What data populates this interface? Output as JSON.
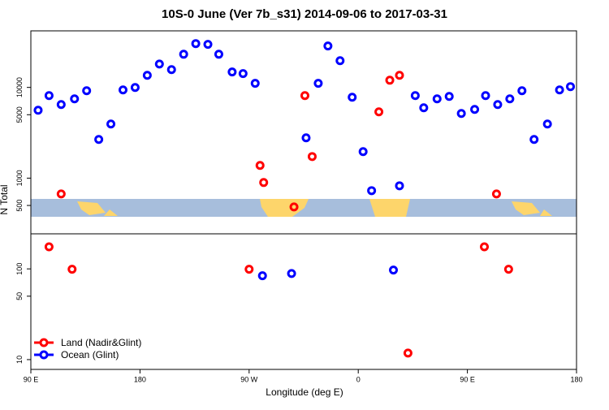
{
  "chart_data": {
    "type": "scatter",
    "title": "10S-0 June (Ver 7b_s31)   2014-09-06 to 2017-03-31",
    "x_label": "Longitude (deg E)",
    "y_label": "N Total",
    "xlim": [
      90,
      540
    ],
    "xticks": [
      {
        "value": 90,
        "label": "90 E"
      },
      180,
      {
        "value": 270,
        "label": "90 W"
      },
      {
        "value": 360,
        "label": "0"
      },
      {
        "value": 450,
        "label": "90 E"
      },
      {
        "value": 540,
        "label": "180"
      }
    ],
    "ylim": [
      7.8,
      42000
    ],
    "log_y": true,
    "yticks": [
      10,
      50,
      100,
      500,
      1000,
      5000,
      10000
    ],
    "legend": "bottom-left",
    "series": [
      {
        "name": "Land (Nadir&Glint)",
        "color": "#ff0000",
        "x": [
          105,
          115,
          124,
          270,
          279,
          282,
          307,
          316,
          322,
          377,
          386,
          394,
          401,
          464,
          474,
          484
        ],
        "values": [
          175,
          670,
          99,
          99,
          1380,
          895,
          482,
          8130,
          1730,
          5380,
          12000,
          13600,
          11.8,
          175,
          670,
          99
        ]
      },
      {
        "name": "Ocean (Glint)",
        "color": "#0000ff",
        "x": [
          96,
          105,
          115,
          126,
          136,
          146,
          156,
          166,
          176,
          186,
          196,
          206,
          216,
          226,
          236,
          245,
          256,
          265,
          275,
          281,
          305,
          317,
          327,
          335,
          345,
          355,
          364,
          371,
          389,
          394,
          407,
          414,
          425,
          435,
          445,
          456,
          465,
          475,
          485,
          495,
          505,
          516,
          526,
          535
        ],
        "values": [
          5600,
          8130,
          6470,
          7480,
          9190,
          2670,
          3950,
          9380,
          9980,
          13600,
          18100,
          15700,
          23200,
          30400,
          29800,
          23200,
          14800,
          14200,
          11100,
          84,
          89,
          2780,
          11100,
          28600,
          19700,
          7800,
          1960,
          728,
          97,
          824,
          8130,
          5960,
          7480,
          7960,
          5160,
          5720,
          8130,
          6470,
          7480,
          9190,
          2670,
          3950,
          9380,
          10200
        ]
      }
    ]
  }
}
